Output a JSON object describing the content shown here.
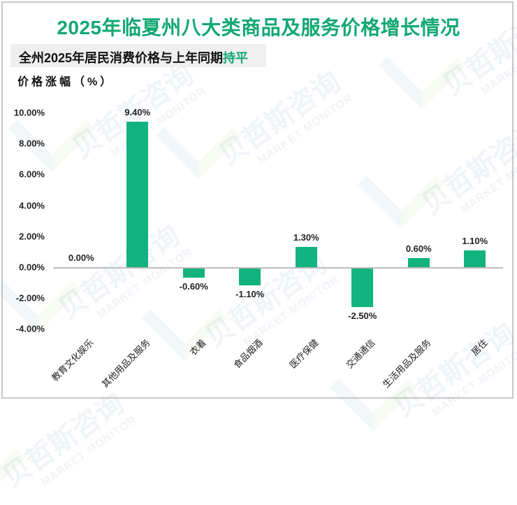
{
  "title": "2025年临夏州八大类商品及服务价格增长情况",
  "subtitle": {
    "prefix": "全州2025年居民消费价格与上年同期",
    "highlight": "持平"
  },
  "y_axis_label": "价格涨幅（%）",
  "watermark": {
    "cn": "贝哲斯咨询",
    "en": "MARKET MONITOR"
  },
  "colors": {
    "bar": "#12b37f",
    "title": "#12a872",
    "axis": "#bdbdbd"
  },
  "chart_data": {
    "type": "bar",
    "title": "2025年临夏州八大类商品及服务价格增长情况",
    "subtitle": "全州2025年居民消费价格与上年同期持平",
    "xlabel": "",
    "ylabel": "价格涨幅（%）",
    "ylim": [
      -4,
      10
    ],
    "y_ticks": [
      "10.00%",
      "8.00%",
      "6.00%",
      "4.00%",
      "2.00%",
      "0.00%",
      "-2.00%",
      "-4.00%"
    ],
    "grid": false,
    "legend": null,
    "categories": [
      "教育文化娱乐",
      "其他用品及服务",
      "衣着",
      "食品烟酒",
      "医疗保健",
      "交通通信",
      "生活用品及服务",
      "居住"
    ],
    "values": [
      0.0,
      9.4,
      -0.6,
      -1.1,
      1.3,
      -2.5,
      0.6,
      1.1
    ],
    "value_labels": [
      "0.00%",
      "9.40%",
      "-0.60%",
      "-1.10%",
      "1.30%",
      "-2.50%",
      "0.60%",
      "1.10%"
    ]
  }
}
